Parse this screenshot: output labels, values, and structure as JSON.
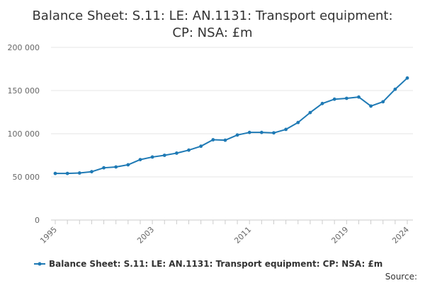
{
  "chart_data": {
    "type": "line",
    "title_lines": [
      "Balance Sheet: S.11: LE: AN.1131: Transport equipment:",
      "CP: NSA: £m"
    ],
    "xlabel": "",
    "ylabel": "",
    "x": [
      1995,
      1996,
      1997,
      1998,
      1999,
      2000,
      2001,
      2002,
      2003,
      2004,
      2005,
      2006,
      2007,
      2008,
      2009,
      2010,
      2011,
      2012,
      2013,
      2014,
      2015,
      2016,
      2017,
      2018,
      2019,
      2020,
      2021,
      2022,
      2023,
      2024
    ],
    "xlim": [
      1995,
      2024
    ],
    "ylim": [
      0,
      200000
    ],
    "y_ticks": [
      0,
      50000,
      100000,
      150000,
      200000
    ],
    "y_tick_labels": [
      "0",
      "50 000",
      "100 000",
      "150 000",
      "200 000"
    ],
    "x_ticks": [
      1995,
      2003,
      2011,
      2019,
      2024
    ],
    "x_tick_labels": [
      "1995",
      "2003",
      "2011",
      "2019",
      "2024"
    ],
    "series": [
      {
        "name": "Balance Sheet: S.11: LE: AN.1131: Transport equipment: CP: NSA: £m",
        "color": "#1f7ab5",
        "values": [
          54000,
          54000,
          54500,
          56000,
          60500,
          61500,
          64000,
          70000,
          73000,
          75000,
          77500,
          81000,
          85500,
          93000,
          92500,
          98500,
          101500,
          101500,
          101000,
          105000,
          113000,
          124500,
          135000,
          140000,
          141000,
          142500,
          132000,
          137000,
          151500,
          164500
        ]
      }
    ],
    "legend": "bottom",
    "grid": true,
    "source_label": "Source:",
    "gridline_color": "#e6e6e6",
    "axis_color": "#cccccc"
  }
}
